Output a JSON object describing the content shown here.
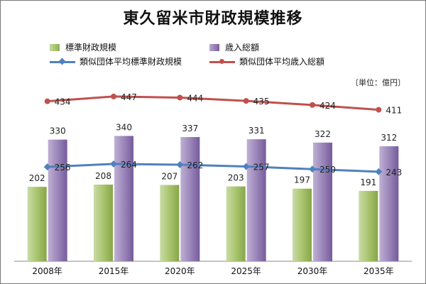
{
  "chart_data": {
    "type": "bar",
    "title": "東久留米市財政規模推移",
    "unit_note": "〔単位：億円〕",
    "categories": [
      "2008年",
      "2015年",
      "2020年",
      "2025年",
      "2030年",
      "2035年"
    ],
    "series": [
      {
        "name": "標準財政規模",
        "kind": "bar",
        "color": "#9bbb59",
        "values": [
          202,
          208,
          207,
          203,
          197,
          191
        ]
      },
      {
        "name": "歳入総額",
        "kind": "bar",
        "color": "#8064a2",
        "values": [
          330,
          340,
          337,
          331,
          322,
          312
        ]
      },
      {
        "name": "類似団体平均標準財政規模",
        "kind": "line",
        "color": "#4f81bd",
        "marker": "diamond",
        "values": [
          256,
          264,
          262,
          257,
          250,
          243
        ]
      },
      {
        "name": "類似団体平均歳入総額",
        "kind": "line",
        "color": "#c0504d",
        "marker": "circle",
        "values": [
          434,
          447,
          444,
          435,
          424,
          411
        ]
      }
    ],
    "ylim": [
      0,
      520
    ],
    "grid": false,
    "legend_position": "top"
  }
}
